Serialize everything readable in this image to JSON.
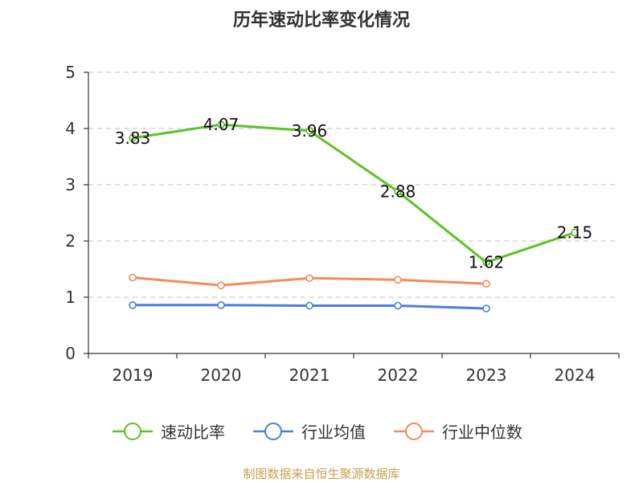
{
  "chart_data": {
    "type": "line",
    "title": "历年速动比率变化情况",
    "categories": [
      "2019",
      "2020",
      "2021",
      "2022",
      "2023",
      "2024"
    ],
    "ylim": [
      0,
      5
    ],
    "yticks": [
      0,
      1,
      2,
      3,
      4,
      5
    ],
    "grid": true,
    "legend_position": "bottom",
    "series": [
      {
        "name": "速动比率",
        "color": "#5cc324",
        "values": [
          3.83,
          4.07,
          3.96,
          2.88,
          1.62,
          2.15
        ],
        "show_labels": true
      },
      {
        "name": "行业均值",
        "color": "#4a7fdc",
        "values": [
          0.86,
          0.86,
          0.85,
          0.85,
          0.8,
          null
        ],
        "show_labels": false
      },
      {
        "name": "行业中位数",
        "color": "#f48b5a",
        "values": [
          1.35,
          1.21,
          1.34,
          1.31,
          1.24,
          null
        ],
        "show_labels": false
      }
    ]
  },
  "source": "制图数据来自恒生聚源数据库"
}
